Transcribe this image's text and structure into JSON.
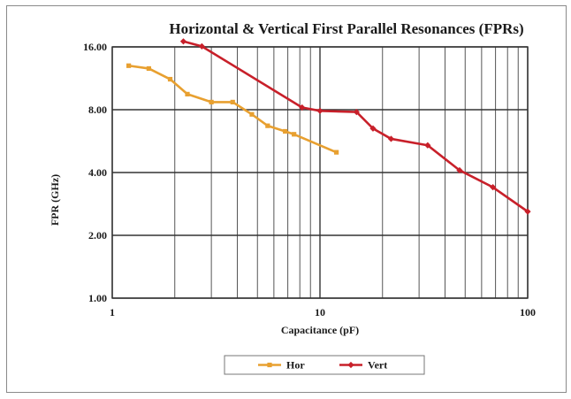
{
  "chart_data": {
    "type": "line",
    "title": "Horizontal & Vertical First Parallel Resonances (FPRs)",
    "xlabel": "Capacitance (pF)",
    "ylabel": "FPR (GHz)",
    "x_scale": "log",
    "y_scale": "log",
    "xlim": [
      1,
      100
    ],
    "ylim": [
      1,
      16
    ],
    "x_ticks": [
      "1",
      "10",
      "100"
    ],
    "y_ticks": [
      "1.00",
      "2.00",
      "4.00",
      "8.00",
      "16.00"
    ],
    "grid": true,
    "legend_position": "bottom",
    "series": [
      {
        "name": "Hor",
        "color": "#e8a030",
        "marker": "square",
        "points": [
          {
            "x": 1.2,
            "y": 13.0
          },
          {
            "x": 1.5,
            "y": 12.6
          },
          {
            "x": 1.9,
            "y": 11.2
          },
          {
            "x": 2.3,
            "y": 9.5
          },
          {
            "x": 3.0,
            "y": 8.7
          },
          {
            "x": 3.8,
            "y": 8.7
          },
          {
            "x": 4.7,
            "y": 7.6
          },
          {
            "x": 5.6,
            "y": 6.7
          },
          {
            "x": 6.8,
            "y": 6.3
          },
          {
            "x": 7.5,
            "y": 6.1
          },
          {
            "x": 12.0,
            "y": 5.0
          }
        ]
      },
      {
        "name": "Vert",
        "color": "#c8202a",
        "marker": "diamond",
        "points": [
          {
            "x": 2.2,
            "y": 17.0
          },
          {
            "x": 2.7,
            "y": 16.1
          },
          {
            "x": 8.2,
            "y": 8.2
          },
          {
            "x": 10.0,
            "y": 7.9
          },
          {
            "x": 15.0,
            "y": 7.8
          },
          {
            "x": 18.0,
            "y": 6.5
          },
          {
            "x": 22.0,
            "y": 5.8
          },
          {
            "x": 33.0,
            "y": 5.4
          },
          {
            "x": 47.0,
            "y": 4.1
          },
          {
            "x": 68.0,
            "y": 3.4
          },
          {
            "x": 100.0,
            "y": 2.6
          }
        ]
      }
    ]
  }
}
